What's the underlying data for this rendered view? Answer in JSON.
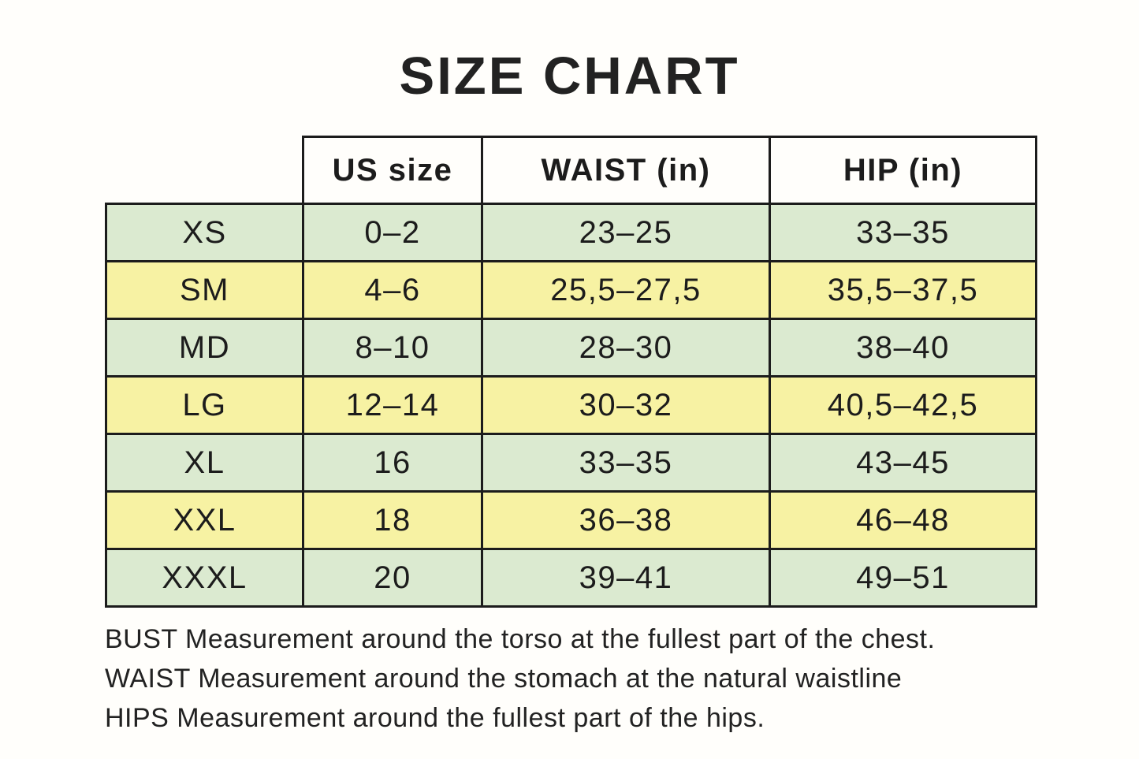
{
  "title": "SIZE CHART",
  "table": {
    "columns": {
      "us": "US size",
      "waist": "WAIST (in)",
      "hip": "HIP (in)"
    },
    "rows": [
      {
        "size": "XS",
        "us": "0–2",
        "waist": "23–25",
        "hip": "33–35"
      },
      {
        "size": "SM",
        "us": "4–6",
        "waist": "25,5–27,5",
        "hip": "35,5–37,5"
      },
      {
        "size": "MD",
        "us": "8–10",
        "waist": "28–30",
        "hip": "38–40"
      },
      {
        "size": "LG",
        "us": "12–14",
        "waist": "30–32",
        "hip": "40,5–42,5"
      },
      {
        "size": "XL",
        "us": "16",
        "waist": "33–35",
        "hip": "43–45"
      },
      {
        "size": "XXL",
        "us": "18",
        "waist": "36–38",
        "hip": "46–48"
      },
      {
        "size": "XXXL",
        "us": "20",
        "waist": "39–41",
        "hip": "49–51"
      }
    ]
  },
  "notes": [
    "BUST Measurement around the torso at the fullest part of the chest.",
    "WAIST Measurement around the stomach at the natural waistline",
    "HIPS Measurement around the fullest part of the hips."
  ],
  "colors": {
    "green": "#dbead0",
    "yellow": "#f7f2a3",
    "border": "#1c1c1c",
    "text": "#1c1c1c",
    "background": "#fffefb"
  }
}
